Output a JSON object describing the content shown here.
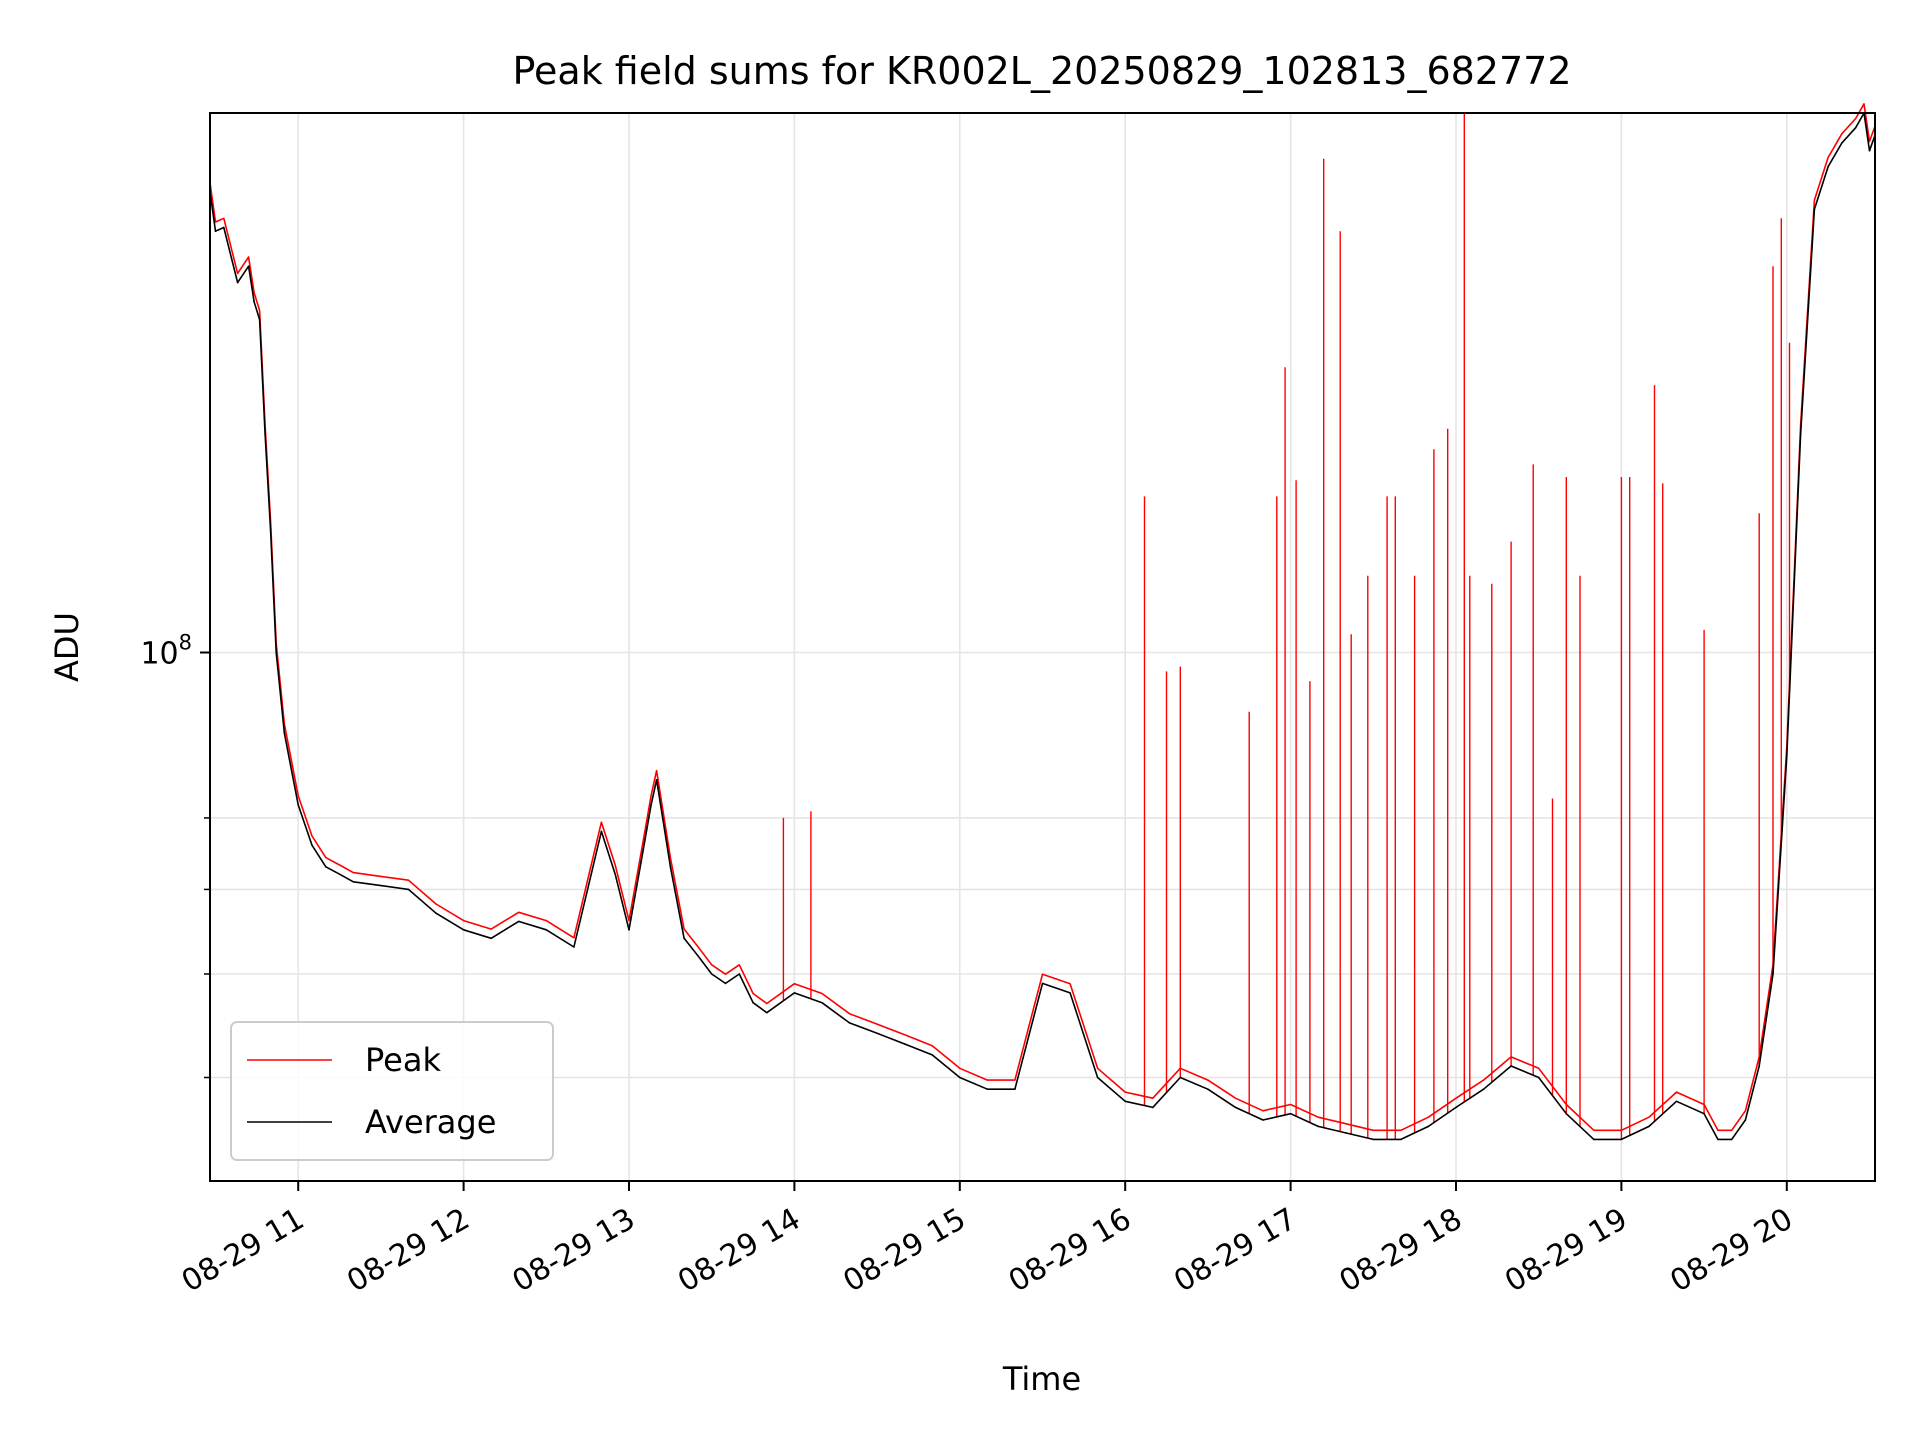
{
  "chart_data": {
    "type": "line",
    "title": "Peak field sums for KR002L_20250829_102813_682772",
    "xlabel": "Time",
    "ylabel": "ADU",
    "yscale": "log",
    "xlim": [
      "2025-08-29 10:28",
      "2025-08-29 20:32"
    ],
    "ylim": [
      32000000,
      320000000
    ],
    "grid": true,
    "legend_position": "lower-left",
    "x_ticks": [
      "08-29 11",
      "08-29 12",
      "08-29 13",
      "08-29 14",
      "08-29 15",
      "08-29 16",
      "08-29 17",
      "08-29 18",
      "08-29 19",
      "08-29 20"
    ],
    "y_tick_labels": [
      {
        "value": 100000000,
        "base": "10",
        "exp": "8"
      }
    ],
    "y_minor_ticks": [
      40000000,
      50000000,
      60000000,
      70000000
    ],
    "colors": {
      "peak": "#ff0000",
      "average": "#000000",
      "grid": "#e5e5e5"
    },
    "series": [
      {
        "name": "Average",
        "x": [
          "10:28",
          "10:30",
          "10:33",
          "10:38",
          "10:42",
          "10:44",
          "10:46",
          "10:48",
          "10:50",
          "10:52",
          "10:55",
          "11:00",
          "11:05",
          "11:10",
          "11:15",
          "11:20",
          "11:30",
          "11:40",
          "11:50",
          "12:00",
          "12:10",
          "12:20",
          "12:30",
          "12:40",
          "12:50",
          "12:55",
          "13:00",
          "13:05",
          "13:08",
          "13:10",
          "13:15",
          "13:20",
          "13:25",
          "13:30",
          "13:35",
          "13:40",
          "13:45",
          "13:50",
          "14:00",
          "14:10",
          "14:20",
          "14:30",
          "14:40",
          "14:50",
          "15:00",
          "15:10",
          "15:20",
          "15:30",
          "15:40",
          "15:50",
          "16:00",
          "16:10",
          "16:20",
          "16:30",
          "16:40",
          "16:50",
          "17:00",
          "17:10",
          "17:20",
          "17:30",
          "17:40",
          "17:50",
          "18:00",
          "18:10",
          "18:20",
          "18:30",
          "18:40",
          "18:50",
          "19:00",
          "19:10",
          "19:20",
          "19:30",
          "19:35",
          "19:40",
          "19:45",
          "19:50",
          "19:55",
          "20:00",
          "20:05",
          "20:10",
          "20:15",
          "20:20",
          "20:25",
          "20:28",
          "20:30",
          "20:32"
        ],
        "y": [
          270000000,
          248000000,
          250000000,
          222000000,
          230000000,
          213000000,
          205000000,
          160000000,
          130000000,
          100000000,
          84000000,
          72000000,
          66000000,
          63000000,
          62000000,
          61000000,
          60500000,
          60000000,
          57000000,
          55000000,
          54000000,
          56000000,
          55000000,
          53000000,
          68000000,
          62000000,
          55000000,
          65000000,
          72000000,
          76000000,
          63000000,
          54000000,
          52000000,
          50000000,
          49000000,
          50000000,
          47000000,
          46000000,
          48000000,
          47000000,
          45000000,
          44000000,
          43000000,
          42000000,
          40000000,
          39000000,
          39000000,
          49000000,
          48000000,
          40000000,
          38000000,
          37500000,
          40000000,
          39000000,
          37500000,
          36500000,
          37000000,
          36000000,
          35500000,
          35000000,
          35000000,
          36000000,
          37500000,
          39000000,
          41000000,
          40000000,
          37000000,
          35000000,
          35000000,
          36000000,
          38000000,
          37000000,
          35000000,
          35000000,
          36500000,
          41000000,
          50000000,
          80000000,
          160000000,
          260000000,
          285000000,
          300000000,
          310000000,
          320000000,
          295000000,
          305000000
        ]
      },
      {
        "name": "Peak",
        "x": [
          "13:56",
          "14:06",
          "16:07",
          "16:15",
          "16:20",
          "16:45",
          "16:55",
          "16:58",
          "17:02",
          "17:07",
          "17:12",
          "17:18",
          "17:22",
          "17:28",
          "17:35",
          "17:38",
          "17:45",
          "17:52",
          "17:57",
          "18:03",
          "18:05",
          "18:13",
          "18:20",
          "18:28",
          "18:35",
          "18:40",
          "18:45",
          "19:00",
          "19:03",
          "19:12",
          "19:15",
          "19:30",
          "19:50",
          "19:55",
          "19:58",
          "20:01"
        ],
        "y": [
          70000000,
          71000000,
          140000000,
          96000000,
          97000000,
          88000000,
          140000000,
          185000000,
          145000000,
          94000000,
          290000000,
          248000000,
          104000000,
          118000000,
          140000000,
          140000000,
          118000000,
          155000000,
          162000000,
          330000000,
          118000000,
          116000000,
          127000000,
          150000000,
          73000000,
          146000000,
          118000000,
          146000000,
          146000000,
          178000000,
          144000000,
          105000000,
          135000000,
          230000000,
          255000000,
          195000000
        ]
      }
    ]
  }
}
